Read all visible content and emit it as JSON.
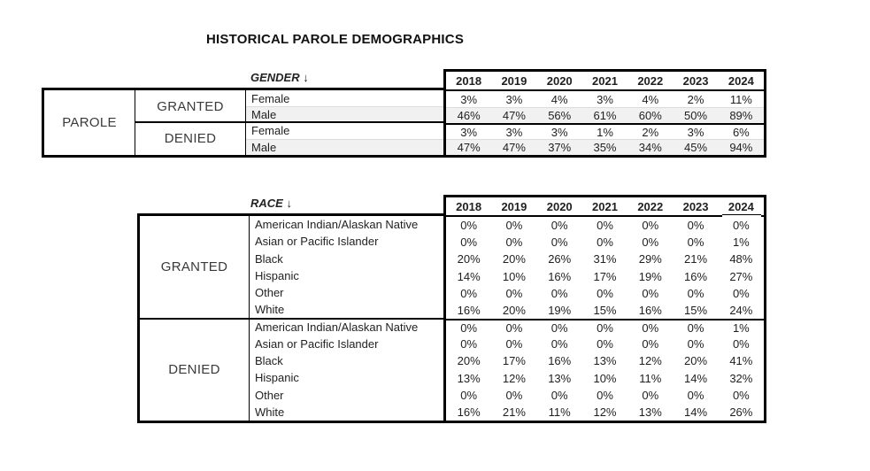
{
  "page": {
    "title": "HISTORICAL PAROLE DEMOGRAPHICS"
  },
  "colors": {
    "border": "#000000",
    "shaded_row": "#f1f1f1",
    "text": "#1f1f1f"
  },
  "years": [
    "2018",
    "2019",
    "2020",
    "2021",
    "2022",
    "2023",
    "2024"
  ],
  "gender_table": {
    "header_label": "GENDER ↓",
    "row_group_label": "PAROLE",
    "sections": [
      {
        "label": "GRANTED",
        "rows": [
          {
            "category": "Female",
            "values": [
              "3%",
              "3%",
              "4%",
              "3%",
              "4%",
              "2%",
              "11%"
            ]
          },
          {
            "category": "Male",
            "values": [
              "46%",
              "47%",
              "56%",
              "61%",
              "60%",
              "50%",
              "89%"
            ]
          }
        ]
      },
      {
        "label": "DENIED",
        "rows": [
          {
            "category": "Female",
            "values": [
              "3%",
              "3%",
              "3%",
              "1%",
              "2%",
              "3%",
              "6%"
            ]
          },
          {
            "category": "Male",
            "values": [
              "47%",
              "47%",
              "37%",
              "35%",
              "34%",
              "45%",
              "94%"
            ]
          }
        ]
      }
    ]
  },
  "race_table": {
    "header_label": "RACE ↓",
    "sections": [
      {
        "label": "GRANTED",
        "rows": [
          {
            "category": "American Indian/Alaskan Native",
            "values": [
              "0%",
              "0%",
              "0%",
              "0%",
              "0%",
              "0%",
              "0%"
            ]
          },
          {
            "category": "Asian or Pacific Islander",
            "values": [
              "0%",
              "0%",
              "0%",
              "0%",
              "0%",
              "0%",
              "1%"
            ]
          },
          {
            "category": "Black",
            "values": [
              "20%",
              "20%",
              "26%",
              "31%",
              "29%",
              "21%",
              "48%"
            ]
          },
          {
            "category": "Hispanic",
            "values": [
              "14%",
              "10%",
              "16%",
              "17%",
              "19%",
              "16%",
              "27%"
            ]
          },
          {
            "category": "Other",
            "values": [
              "0%",
              "0%",
              "0%",
              "0%",
              "0%",
              "0%",
              "0%"
            ]
          },
          {
            "category": "White",
            "values": [
              "16%",
              "20%",
              "19%",
              "15%",
              "16%",
              "15%",
              "24%"
            ]
          }
        ]
      },
      {
        "label": "DENIED",
        "rows": [
          {
            "category": "American Indian/Alaskan Native",
            "values": [
              "0%",
              "0%",
              "0%",
              "0%",
              "0%",
              "0%",
              "1%"
            ]
          },
          {
            "category": "Asian or Pacific Islander",
            "values": [
              "0%",
              "0%",
              "0%",
              "0%",
              "0%",
              "0%",
              "0%"
            ]
          },
          {
            "category": "Black",
            "values": [
              "20%",
              "17%",
              "16%",
              "13%",
              "12%",
              "20%",
              "41%"
            ]
          },
          {
            "category": "Hispanic",
            "values": [
              "13%",
              "12%",
              "13%",
              "10%",
              "11%",
              "14%",
              "32%"
            ]
          },
          {
            "category": "Other",
            "values": [
              "0%",
              "0%",
              "0%",
              "0%",
              "0%",
              "0%",
              "0%"
            ]
          },
          {
            "category": "White",
            "values": [
              "16%",
              "21%",
              "11%",
              "12%",
              "13%",
              "14%",
              "26%"
            ]
          }
        ]
      }
    ]
  }
}
